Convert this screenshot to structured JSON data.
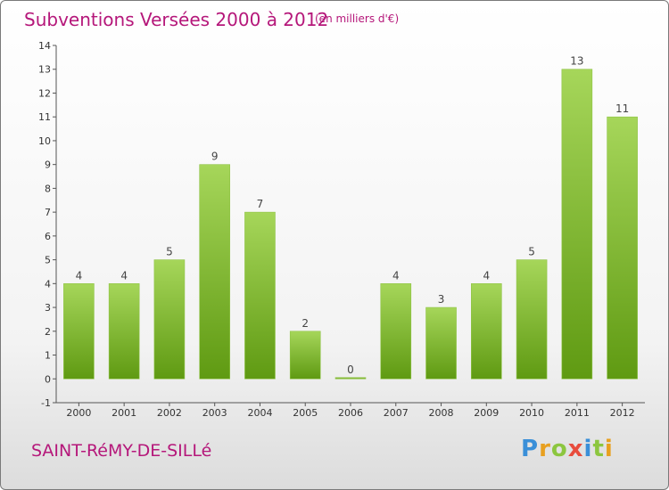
{
  "header": {
    "title": "Subventions Versées 2000 à 2012",
    "unit_note": "(en milliers d'€)"
  },
  "footer": {
    "town": "SAINT-RéMY-DE-SILLé",
    "brand": {
      "letters": [
        "P",
        "r",
        "o",
        "x",
        "i",
        "t",
        "i"
      ],
      "colors": [
        "#3a8fd8",
        "#e8a020",
        "#8cc63f",
        "#e84c3d",
        "#3a8fd8",
        "#8cc63f",
        "#e8a020"
      ]
    }
  },
  "colors": {
    "bar_light": "#a6d65a",
    "bar_dark": "#5f9a12",
    "text_accent": "#b5177a"
  },
  "chart_data": {
    "type": "bar",
    "title": "Subventions Versées 2000 à 2012",
    "categories": [
      "2000",
      "2001",
      "2002",
      "2003",
      "2004",
      "2005",
      "2006",
      "2007",
      "2008",
      "2009",
      "2010",
      "2011",
      "2012"
    ],
    "values": [
      4,
      4,
      5,
      9,
      7,
      2,
      0,
      4,
      3,
      4,
      5,
      13,
      11
    ],
    "data_labels": [
      "4",
      "4",
      "5",
      "9",
      "7",
      "2",
      "0",
      "4",
      "3",
      "4",
      "5",
      "13",
      "11"
    ],
    "y_ticks": [
      "-1",
      "0",
      "1",
      "2",
      "3",
      "4",
      "5",
      "6",
      "7",
      "8",
      "9",
      "10",
      "11",
      "12",
      "13",
      "14"
    ],
    "ylim": [
      -1,
      14
    ],
    "grid": false,
    "legend": "none"
  }
}
